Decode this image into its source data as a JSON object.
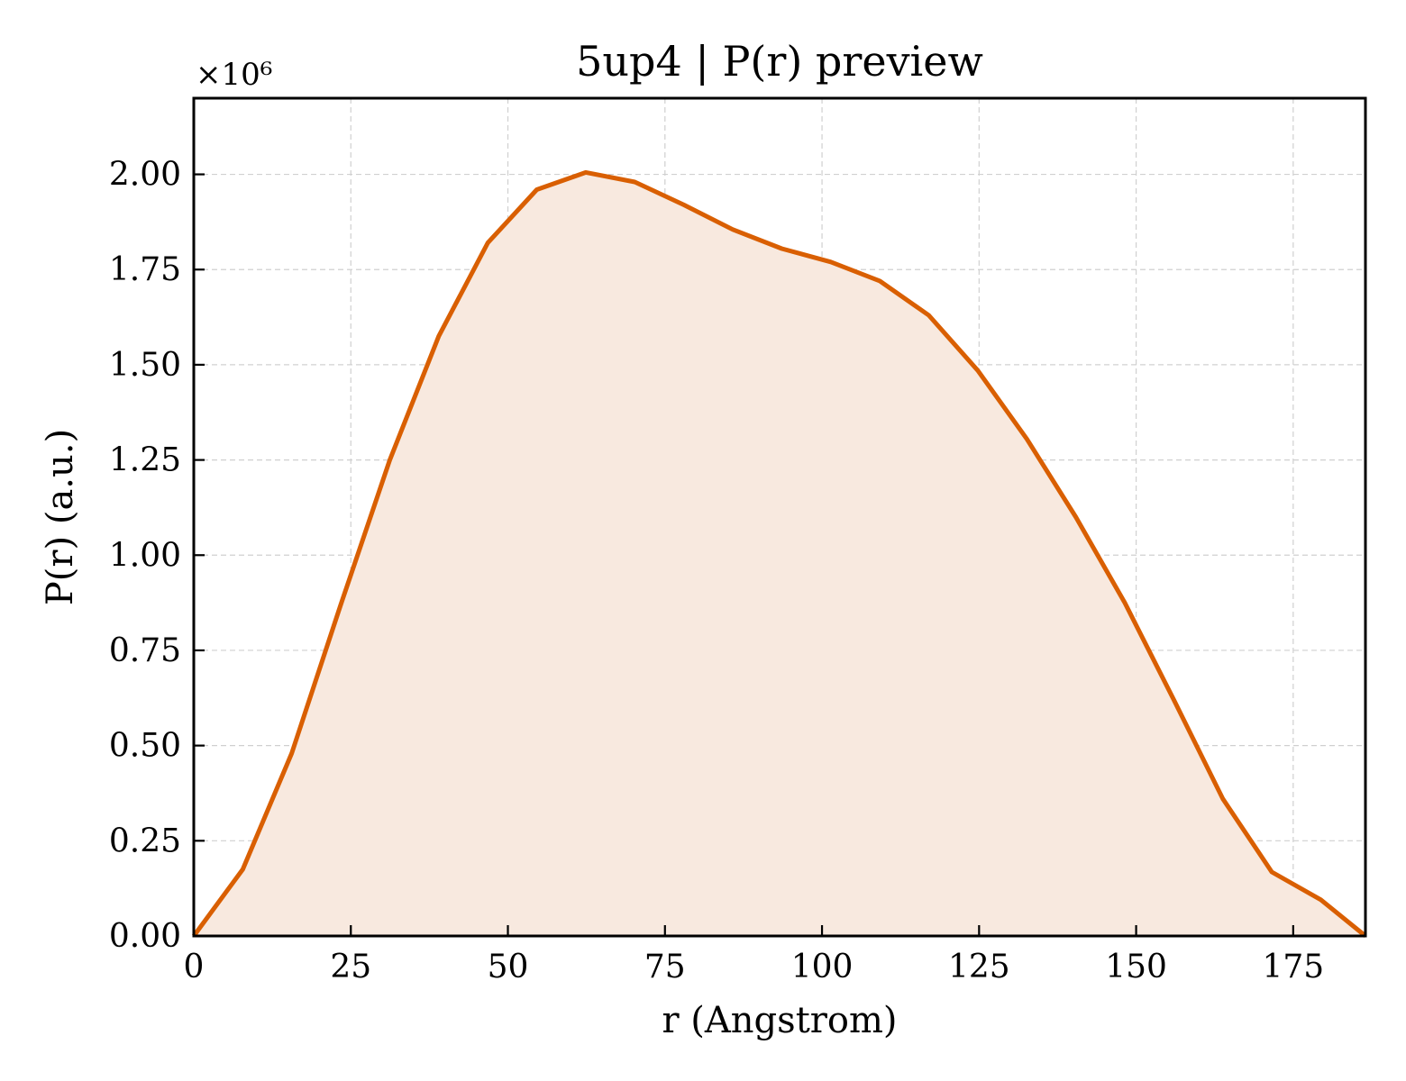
{
  "colors": {
    "line": "#d95f02",
    "fill": "#f8e9df"
  },
  "chart_data": {
    "type": "area",
    "title": "5up4 | P(r) preview",
    "xlabel": "r (Angstrom)",
    "ylabel": "P(r) (a.u.)",
    "y_scale_label": "×10⁶",
    "xlim": [
      0,
      186.5
    ],
    "ylim": [
      0,
      2200000
    ],
    "xticks": [
      0,
      25,
      50,
      75,
      100,
      125,
      150,
      175
    ],
    "xtick_labels": [
      "0",
      "25",
      "50",
      "75",
      "100",
      "125",
      "150",
      "175"
    ],
    "yticks": [
      0,
      250000,
      500000,
      750000,
      1000000,
      1250000,
      1500000,
      1750000,
      2000000
    ],
    "ytick_labels": [
      "0.00",
      "0.25",
      "0.50",
      "0.75",
      "1.00",
      "1.25",
      "1.50",
      "1.75",
      "2.00"
    ],
    "grid": true,
    "series": [
      {
        "x": [
          0,
          7.8,
          15.6,
          23.4,
          31.2,
          39.0,
          46.8,
          54.6,
          62.4,
          70.2,
          78.0,
          85.8,
          93.6,
          101.4,
          109.2,
          117.0,
          124.8,
          132.6,
          140.4,
          148.2,
          156.0,
          163.8,
          171.6,
          179.4,
          186.5
        ],
        "y": [
          0,
          175000,
          480000,
          870000,
          1250000,
          1575000,
          1820000,
          1960000,
          2005000,
          1980000,
          1920000,
          1855000,
          1805000,
          1770000,
          1720000,
          1630000,
          1485000,
          1305000,
          1100000,
          875000,
          620000,
          360000,
          168000,
          95000,
          0
        ]
      }
    ]
  }
}
